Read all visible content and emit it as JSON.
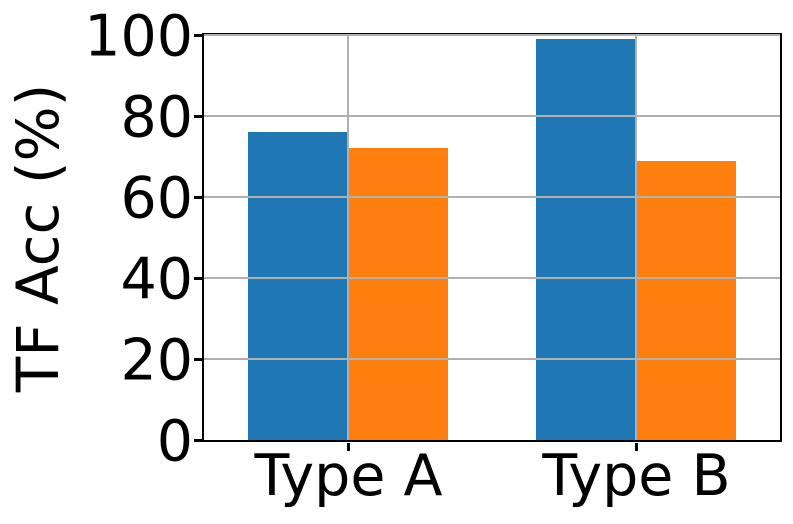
{
  "figure": {
    "background": "#ffffff",
    "text_color": "#000000",
    "spine_color": "#000000"
  },
  "chart_data": {
    "type": "bar",
    "title": "",
    "xlabel": "",
    "ylabel": "TF Acc (%)",
    "categories": [
      "Type A",
      "Type B"
    ],
    "series": [
      {
        "name": "blue",
        "color": "#1f77b4",
        "values": [
          76,
          99
        ]
      },
      {
        "name": "orange",
        "color": "#ff7f0e",
        "values": [
          72,
          69
        ]
      }
    ],
    "ylim": [
      0,
      100
    ],
    "yticks": [
      0,
      20,
      40,
      60,
      80,
      100
    ],
    "grid": true,
    "grid_axis": "both",
    "grid_color": "#b0b0b0",
    "grid_above_bars": true,
    "legend": "none"
  }
}
